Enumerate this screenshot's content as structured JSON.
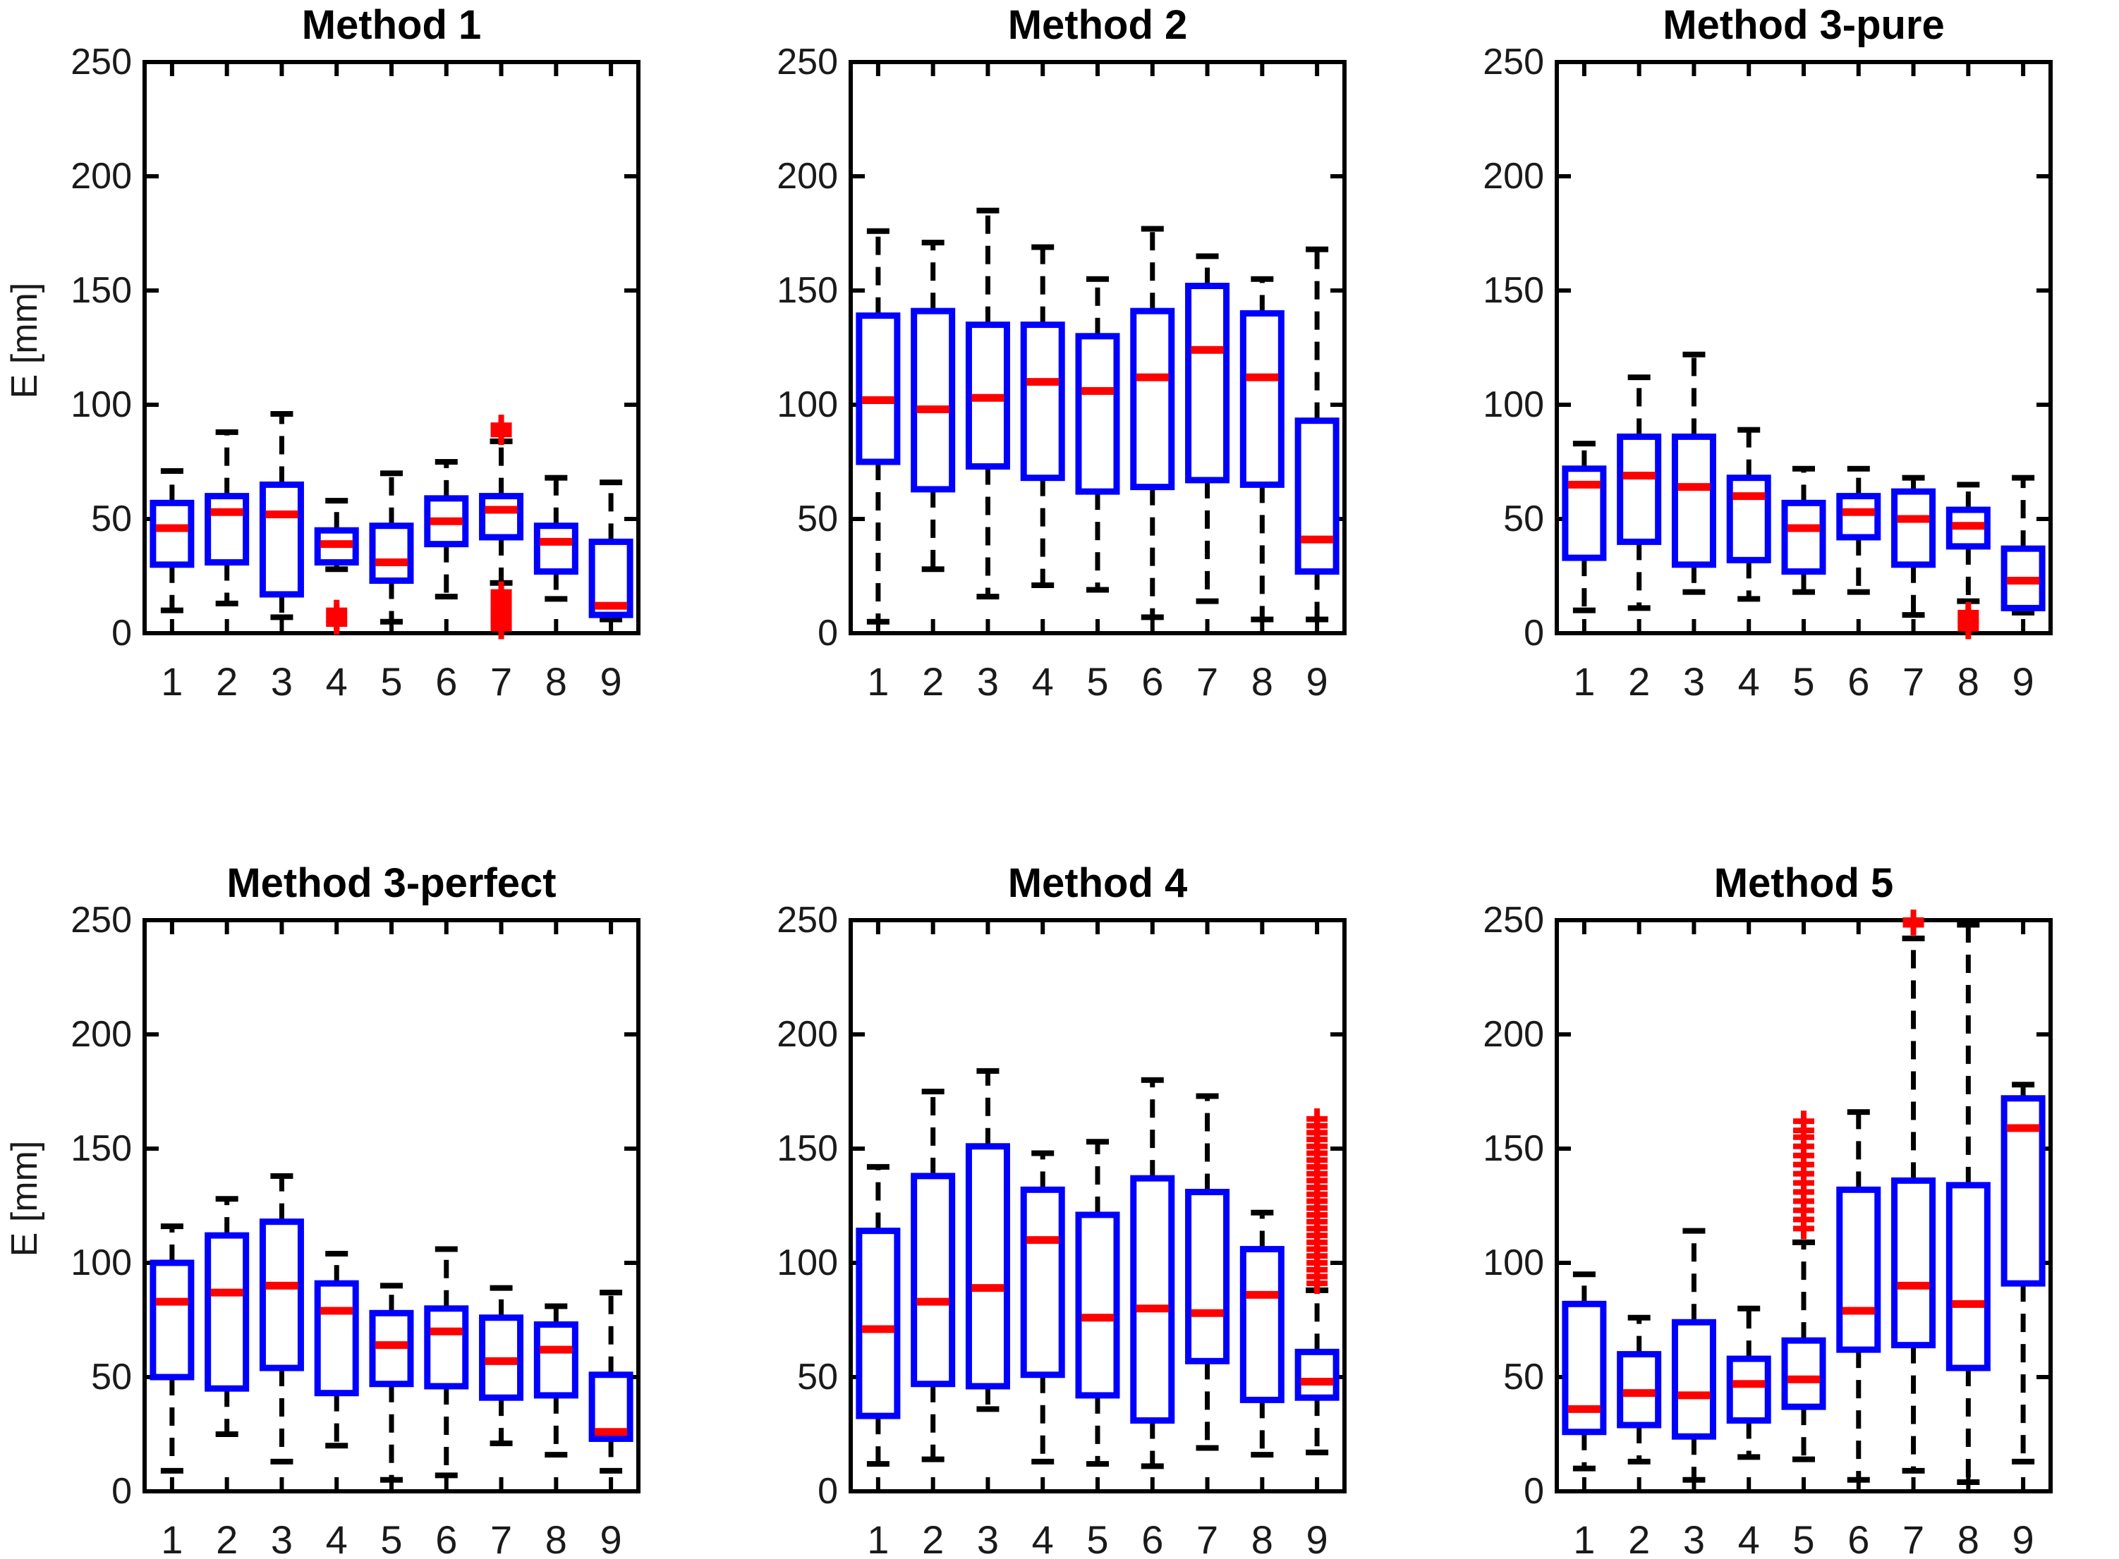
{
  "figure": {
    "background": "#ffffff"
  },
  "chart_data": {
    "type": "box",
    "ylabel": "E [mm]",
    "xlabel": "",
    "ylim": [
      0,
      250
    ],
    "yticks": [
      0,
      50,
      100,
      150,
      200,
      250
    ],
    "categories": [
      "1",
      "2",
      "3",
      "4",
      "5",
      "6",
      "7",
      "8",
      "9"
    ],
    "grid": false,
    "legend": "none",
    "colors": {
      "box": "#0000ff",
      "median": "#ff0000",
      "whisker": "#000000",
      "outlier": "#ff0000",
      "axis": "#000000",
      "text": "#1a1a1a"
    },
    "panels": [
      {
        "title": "Method 1",
        "show_ylabel": true,
        "row": 0,
        "boxes": [
          {
            "lo": 10,
            "q1": 30,
            "med": 46,
            "q3": 57,
            "hi": 71,
            "out": []
          },
          {
            "lo": 13,
            "q1": 31,
            "med": 53,
            "q3": 60,
            "hi": 88,
            "out": []
          },
          {
            "lo": 7,
            "q1": 17,
            "med": 52,
            "q3": 65,
            "hi": 96,
            "out": []
          },
          {
            "lo": 28,
            "q1": 31,
            "med": 39,
            "q3": 45,
            "hi": 58,
            "out": [
              4,
              6,
              8,
              10
            ]
          },
          {
            "lo": 5,
            "q1": 23,
            "med": 31,
            "q3": 47,
            "hi": 70,
            "out": []
          },
          {
            "lo": 16,
            "q1": 39,
            "med": 49,
            "q3": 59,
            "hi": 75,
            "out": []
          },
          {
            "lo": 22,
            "q1": 42,
            "med": 54,
            "q3": 60,
            "hi": 84,
            "out": [
              2,
              4,
              6,
              8,
              10,
              12,
              14,
              16,
              18,
              87,
              89,
              91
            ]
          },
          {
            "lo": 15,
            "q1": 27,
            "med": 40,
            "q3": 47,
            "hi": 68,
            "out": []
          },
          {
            "lo": 6,
            "q1": 8,
            "med": 12,
            "q3": 40,
            "hi": 66,
            "out": []
          }
        ]
      },
      {
        "title": "Method 2",
        "show_ylabel": false,
        "row": 0,
        "boxes": [
          {
            "lo": 5,
            "q1": 75,
            "med": 102,
            "q3": 139,
            "hi": 176,
            "out": []
          },
          {
            "lo": 28,
            "q1": 63,
            "med": 98,
            "q3": 141,
            "hi": 171,
            "out": []
          },
          {
            "lo": 16,
            "q1": 73,
            "med": 103,
            "q3": 135,
            "hi": 185,
            "out": []
          },
          {
            "lo": 21,
            "q1": 68,
            "med": 110,
            "q3": 135,
            "hi": 169,
            "out": []
          },
          {
            "lo": 19,
            "q1": 62,
            "med": 106,
            "q3": 130,
            "hi": 155,
            "out": []
          },
          {
            "lo": 7,
            "q1": 64,
            "med": 112,
            "q3": 141,
            "hi": 177,
            "out": []
          },
          {
            "lo": 14,
            "q1": 67,
            "med": 124,
            "q3": 152,
            "hi": 165,
            "out": []
          },
          {
            "lo": 6,
            "q1": 65,
            "med": 112,
            "q3": 140,
            "hi": 155,
            "out": []
          },
          {
            "lo": 6,
            "q1": 27,
            "med": 41,
            "q3": 93,
            "hi": 168,
            "out": []
          }
        ]
      },
      {
        "title": "Method 3-pure",
        "show_ylabel": false,
        "row": 0,
        "boxes": [
          {
            "lo": 10,
            "q1": 33,
            "med": 65,
            "q3": 72,
            "hi": 83,
            "out": []
          },
          {
            "lo": 11,
            "q1": 40,
            "med": 69,
            "q3": 86,
            "hi": 112,
            "out": []
          },
          {
            "lo": 18,
            "q1": 30,
            "med": 64,
            "q3": 86,
            "hi": 122,
            "out": []
          },
          {
            "lo": 15,
            "q1": 32,
            "med": 60,
            "q3": 68,
            "hi": 89,
            "out": []
          },
          {
            "lo": 18,
            "q1": 27,
            "med": 46,
            "q3": 57,
            "hi": 72,
            "out": []
          },
          {
            "lo": 18,
            "q1": 42,
            "med": 53,
            "q3": 60,
            "hi": 72,
            "out": []
          },
          {
            "lo": 8,
            "q1": 30,
            "med": 50,
            "q3": 62,
            "hi": 68,
            "out": []
          },
          {
            "lo": 14,
            "q1": 38,
            "med": 47,
            "q3": 54,
            "hi": 65,
            "out": [
              2,
              4,
              5,
              7,
              9
            ]
          },
          {
            "lo": 9,
            "q1": 11,
            "med": 23,
            "q3": 37,
            "hi": 68,
            "out": []
          }
        ]
      },
      {
        "title": "Method 3-perfect",
        "show_ylabel": true,
        "row": 1,
        "boxes": [
          {
            "lo": 9,
            "q1": 50,
            "med": 83,
            "q3": 100,
            "hi": 116,
            "out": []
          },
          {
            "lo": 25,
            "q1": 45,
            "med": 87,
            "q3": 112,
            "hi": 128,
            "out": []
          },
          {
            "lo": 13,
            "q1": 54,
            "med": 90,
            "q3": 118,
            "hi": 138,
            "out": []
          },
          {
            "lo": 20,
            "q1": 43,
            "med": 79,
            "q3": 91,
            "hi": 104,
            "out": []
          },
          {
            "lo": 5,
            "q1": 47,
            "med": 64,
            "q3": 78,
            "hi": 90,
            "out": []
          },
          {
            "lo": 7,
            "q1": 46,
            "med": 70,
            "q3": 80,
            "hi": 106,
            "out": []
          },
          {
            "lo": 21,
            "q1": 41,
            "med": 57,
            "q3": 76,
            "hi": 89,
            "out": []
          },
          {
            "lo": 16,
            "q1": 42,
            "med": 62,
            "q3": 73,
            "hi": 81,
            "out": []
          },
          {
            "lo": 9,
            "q1": 23,
            "med": 26,
            "q3": 51,
            "hi": 87,
            "out": []
          }
        ]
      },
      {
        "title": "Method 4",
        "show_ylabel": false,
        "row": 1,
        "boxes": [
          {
            "lo": 12,
            "q1": 33,
            "med": 71,
            "q3": 114,
            "hi": 142,
            "out": []
          },
          {
            "lo": 14,
            "q1": 47,
            "med": 83,
            "q3": 138,
            "hi": 175,
            "out": []
          },
          {
            "lo": 36,
            "q1": 46,
            "med": 89,
            "q3": 151,
            "hi": 184,
            "out": []
          },
          {
            "lo": 13,
            "q1": 51,
            "med": 110,
            "q3": 132,
            "hi": 148,
            "out": []
          },
          {
            "lo": 12,
            "q1": 42,
            "med": 76,
            "q3": 121,
            "hi": 153,
            "out": []
          },
          {
            "lo": 11,
            "q1": 31,
            "med": 80,
            "q3": 137,
            "hi": 180,
            "out": []
          },
          {
            "lo": 19,
            "q1": 57,
            "med": 78,
            "q3": 131,
            "hi": 173,
            "out": []
          },
          {
            "lo": 16,
            "q1": 40,
            "med": 86,
            "q3": 106,
            "hi": 122,
            "out": []
          },
          {
            "lo": 17,
            "q1": 41,
            "med": 48,
            "q3": 61,
            "hi": 88,
            "out": [
              91,
              94,
              97,
              100,
              103,
              106,
              109,
              112,
              115,
              118,
              121,
              124,
              127,
              130,
              133,
              136,
              139,
              142,
              145,
              148,
              151,
              154,
              157,
              160,
              163
            ]
          }
        ]
      },
      {
        "title": "Method 5",
        "show_ylabel": false,
        "row": 1,
        "boxes": [
          {
            "lo": 10,
            "q1": 26,
            "med": 36,
            "q3": 82,
            "hi": 95,
            "out": []
          },
          {
            "lo": 13,
            "q1": 29,
            "med": 43,
            "q3": 60,
            "hi": 76,
            "out": []
          },
          {
            "lo": 5,
            "q1": 24,
            "med": 42,
            "q3": 74,
            "hi": 114,
            "out": []
          },
          {
            "lo": 15,
            "q1": 31,
            "med": 47,
            "q3": 58,
            "hi": 80,
            "out": []
          },
          {
            "lo": 14,
            "q1": 37,
            "med": 49,
            "q3": 66,
            "hi": 109,
            "out": [
              115,
              119,
              123,
              127,
              131,
              135,
              139,
              143,
              147,
              151,
              155,
              158,
              162
            ]
          },
          {
            "lo": 5,
            "q1": 62,
            "med": 79,
            "q3": 132,
            "hi": 166,
            "out": []
          },
          {
            "lo": 9,
            "q1": 64,
            "med": 90,
            "q3": 136,
            "hi": 242,
            "out": [
              248,
              251
            ]
          },
          {
            "lo": 4,
            "q1": 54,
            "med": 82,
            "q3": 134,
            "hi": 248,
            "out": []
          },
          {
            "lo": 13,
            "q1": 91,
            "med": 159,
            "q3": 172,
            "hi": 178,
            "out": []
          }
        ]
      }
    ]
  }
}
